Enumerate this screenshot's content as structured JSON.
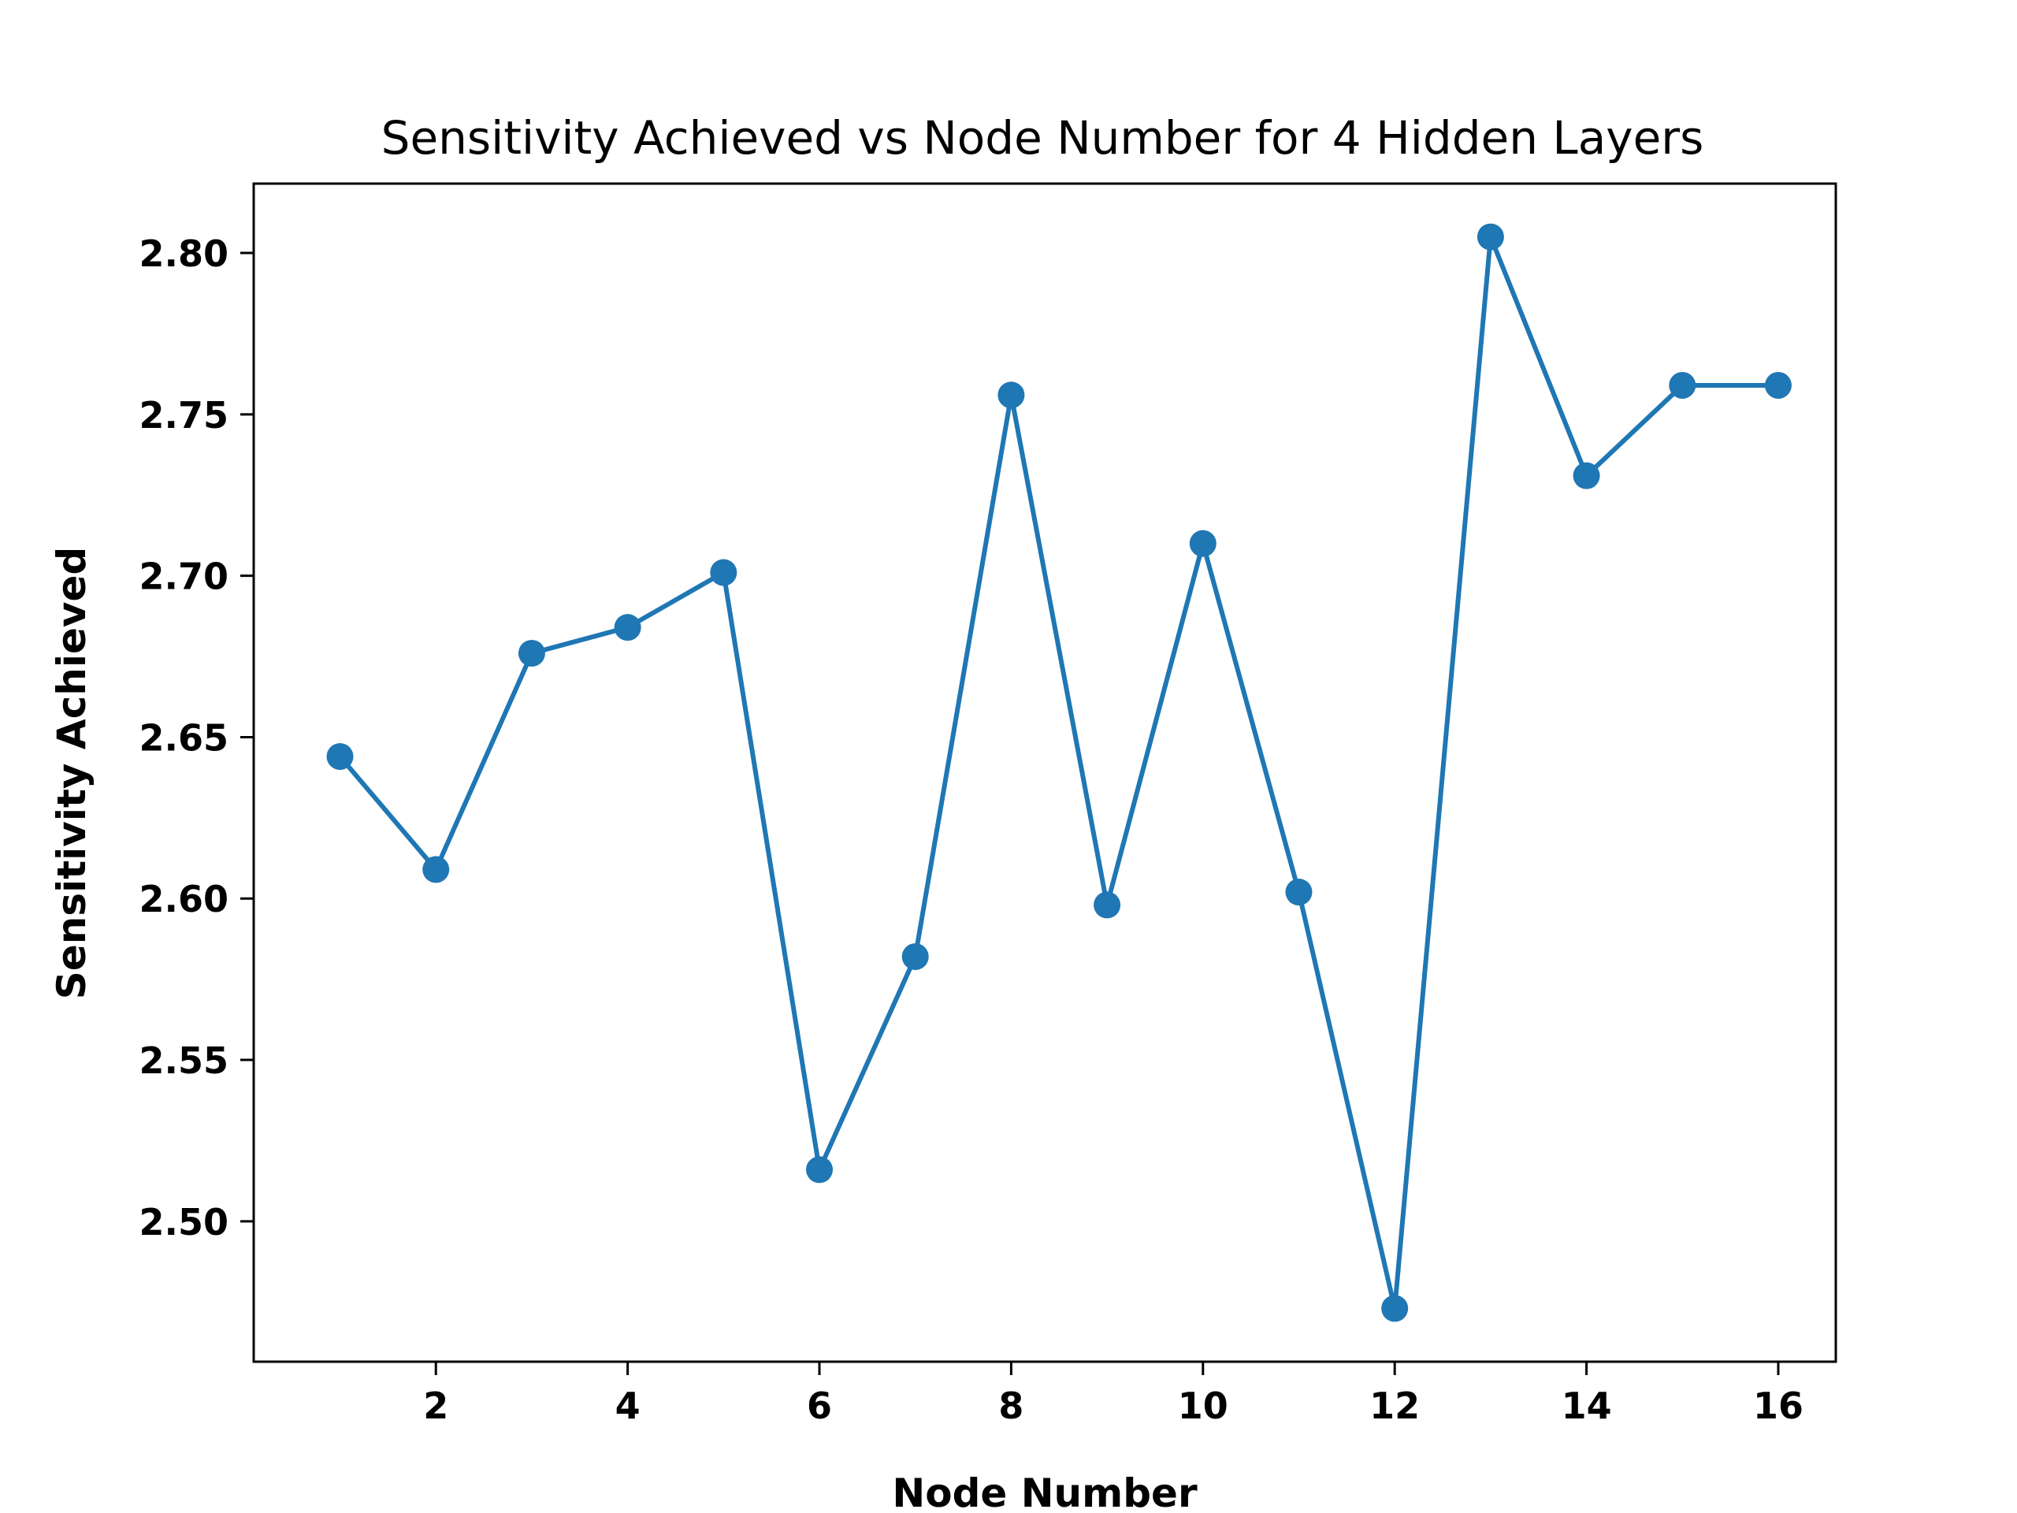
{
  "chart_data": {
    "type": "line",
    "title": "Sensitivity Achieved vs Node Number for 4 Hidden Layers",
    "xlabel": "Node Number",
    "ylabel": "Sensitivity Achieved",
    "x": [
      1,
      2,
      3,
      4,
      5,
      6,
      7,
      8,
      9,
      10,
      11,
      12,
      13,
      14,
      15,
      16
    ],
    "series": [
      {
        "values": [
          2.644,
          2.609,
          2.676,
          2.684,
          2.701,
          2.516,
          2.582,
          2.756,
          2.598,
          2.71,
          2.602,
          2.473,
          2.805,
          2.731,
          2.759,
          2.759
        ],
        "color": "#1f77b4",
        "marker": "circle"
      }
    ],
    "xlim": [
      0.1,
      16.6
    ],
    "ylim": [
      2.4565,
      2.8215
    ],
    "xticks": [
      2,
      4,
      6,
      8,
      10,
      12,
      14,
      16
    ],
    "xtick_labels": [
      "2",
      "4",
      "6",
      "8",
      "10",
      "12",
      "14",
      "16"
    ],
    "yticks": [
      2.5,
      2.55,
      2.6,
      2.65,
      2.7,
      2.75,
      2.8
    ],
    "ytick_labels": [
      "2.50",
      "2.55",
      "2.60",
      "2.65",
      "2.70",
      "2.75",
      "2.80"
    ],
    "grid": false,
    "legend": "none"
  }
}
